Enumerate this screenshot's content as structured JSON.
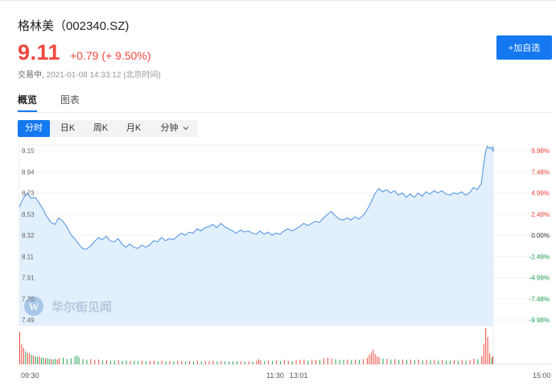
{
  "stock": {
    "name_code": "格林美（002340.SZ)",
    "price": "9.11",
    "change": "+0.79 (+ 9.50%)",
    "status": "交易中,",
    "timestamp": "2021-01-08 14:33:12 (北京时间)"
  },
  "add_watch_label": "+加自选",
  "tabs": [
    {
      "label": "概览"
    },
    {
      "label": "图表"
    }
  ],
  "periods": [
    {
      "label": "分时"
    },
    {
      "label": "日K"
    },
    {
      "label": "周K"
    },
    {
      "label": "月K"
    },
    {
      "label": "分钟"
    }
  ],
  "periods_dropdown_icon": "chevron-down-icon",
  "watermark": "华尔街见闻",
  "colors": {
    "up": "#f0463c",
    "down": "#23a356",
    "neutral": "#333333",
    "accent": "#1478f0",
    "line": "#4a90e2",
    "fill": "#e2effc"
  },
  "chart_data": {
    "type": "area",
    "prev_close": 8.32,
    "ylim": [
      7.49,
      9.15
    ],
    "y_ticks_price": [
      "9.15",
      "8.94",
      "8.73",
      "8.53",
      "8.32",
      "8.11",
      "7.91",
      "7.70",
      "7.49"
    ],
    "y_ticks_pct": [
      "9.98%",
      "7.48%",
      "4.99%",
      "2.49%",
      "0.00%",
      "-2.49%",
      "-4.99%",
      "-7.48%",
      "-9.98%"
    ],
    "x_ticks": [
      "09:30",
      "11:30",
      "13:01",
      "15:00"
    ],
    "total_minutes": 240,
    "price_points": [
      [
        0,
        8.58
      ],
      [
        2,
        8.66
      ],
      [
        4,
        8.71
      ],
      [
        6,
        8.66
      ],
      [
        8,
        8.67
      ],
      [
        10,
        8.62
      ],
      [
        12,
        8.56
      ],
      [
        14,
        8.49
      ],
      [
        16,
        8.44
      ],
      [
        18,
        8.42
      ],
      [
        20,
        8.48
      ],
      [
        22,
        8.45
      ],
      [
        24,
        8.4
      ],
      [
        26,
        8.33
      ],
      [
        28,
        8.29
      ],
      [
        30,
        8.24
      ],
      [
        32,
        8.2
      ],
      [
        34,
        8.19
      ],
      [
        36,
        8.22
      ],
      [
        38,
        8.26
      ],
      [
        40,
        8.3
      ],
      [
        42,
        8.28
      ],
      [
        44,
        8.31
      ],
      [
        46,
        8.27
      ],
      [
        48,
        8.26
      ],
      [
        50,
        8.29
      ],
      [
        52,
        8.24
      ],
      [
        54,
        8.21
      ],
      [
        56,
        8.24
      ],
      [
        58,
        8.21
      ],
      [
        60,
        8.2
      ],
      [
        62,
        8.23
      ],
      [
        64,
        8.21
      ],
      [
        66,
        8.23
      ],
      [
        68,
        8.27
      ],
      [
        70,
        8.26
      ],
      [
        72,
        8.3
      ],
      [
        74,
        8.27
      ],
      [
        76,
        8.29
      ],
      [
        78,
        8.28
      ],
      [
        80,
        8.31
      ],
      [
        82,
        8.34
      ],
      [
        84,
        8.32
      ],
      [
        86,
        8.35
      ],
      [
        88,
        8.34
      ],
      [
        90,
        8.38
      ],
      [
        92,
        8.36
      ],
      [
        94,
        8.39
      ],
      [
        96,
        8.4
      ],
      [
        98,
        8.42
      ],
      [
        100,
        8.39
      ],
      [
        102,
        8.43
      ],
      [
        104,
        8.4
      ],
      [
        106,
        8.38
      ],
      [
        108,
        8.36
      ],
      [
        110,
        8.34
      ],
      [
        112,
        8.37
      ],
      [
        114,
        8.35
      ],
      [
        116,
        8.36
      ],
      [
        118,
        8.34
      ],
      [
        120,
        8.33
      ],
      [
        122,
        8.36
      ],
      [
        124,
        8.33
      ],
      [
        126,
        8.35
      ],
      [
        128,
        8.32
      ],
      [
        130,
        8.34
      ],
      [
        132,
        8.33
      ],
      [
        134,
        8.36
      ],
      [
        136,
        8.38
      ],
      [
        138,
        8.36
      ],
      [
        140,
        8.38
      ],
      [
        142,
        8.4
      ],
      [
        144,
        8.43
      ],
      [
        146,
        8.41
      ],
      [
        148,
        8.43
      ],
      [
        150,
        8.45
      ],
      [
        152,
        8.44
      ],
      [
        154,
        8.48
      ],
      [
        156,
        8.51
      ],
      [
        158,
        8.54
      ],
      [
        160,
        8.5
      ],
      [
        162,
        8.47
      ],
      [
        164,
        8.46
      ],
      [
        166,
        8.48
      ],
      [
        168,
        8.46
      ],
      [
        170,
        8.49
      ],
      [
        172,
        8.47
      ],
      [
        174,
        8.5
      ],
      [
        176,
        8.55
      ],
      [
        178,
        8.62
      ],
      [
        180,
        8.7
      ],
      [
        182,
        8.75
      ],
      [
        184,
        8.72
      ],
      [
        186,
        8.74
      ],
      [
        188,
        8.71
      ],
      [
        190,
        8.73
      ],
      [
        192,
        8.69
      ],
      [
        194,
        8.71
      ],
      [
        196,
        8.67
      ],
      [
        198,
        8.7
      ],
      [
        200,
        8.67
      ],
      [
        202,
        8.71
      ],
      [
        204,
        8.68
      ],
      [
        206,
        8.72
      ],
      [
        208,
        8.7
      ],
      [
        210,
        8.73
      ],
      [
        212,
        8.71
      ],
      [
        214,
        8.73
      ],
      [
        216,
        8.7
      ],
      [
        218,
        8.69
      ],
      [
        220,
        8.71
      ],
      [
        222,
        8.7
      ],
      [
        224,
        8.72
      ],
      [
        226,
        8.69
      ],
      [
        228,
        8.71
      ],
      [
        230,
        8.76
      ],
      [
        232,
        8.74
      ],
      [
        234,
        8.8
      ],
      [
        235,
        8.95
      ],
      [
        236,
        9.08
      ],
      [
        237,
        9.14
      ],
      [
        238,
        9.12
      ],
      [
        239,
        9.13
      ],
      [
        240,
        9.09
      ],
      [
        242,
        9.14
      ],
      [
        244,
        9.11
      ]
    ],
    "volume": [
      [
        0,
        0.9,
        "up"
      ],
      [
        1,
        0.55,
        "up"
      ],
      [
        2,
        0.45,
        "up"
      ],
      [
        3,
        0.35,
        "down"
      ],
      [
        4,
        0.32,
        "up"
      ],
      [
        5,
        0.3,
        "up"
      ],
      [
        6,
        0.26,
        "down"
      ],
      [
        7,
        0.24,
        "up"
      ],
      [
        8,
        0.22,
        "down"
      ],
      [
        9,
        0.2,
        "down"
      ],
      [
        10,
        0.22,
        "up"
      ],
      [
        11,
        0.18,
        "down"
      ],
      [
        12,
        0.18,
        "down"
      ],
      [
        13,
        0.16,
        "up"
      ],
      [
        14,
        0.17,
        "down"
      ],
      [
        15,
        0.15,
        "down"
      ],
      [
        16,
        0.14,
        "up"
      ],
      [
        17,
        0.13,
        "down"
      ],
      [
        18,
        0.15,
        "down"
      ],
      [
        19,
        0.13,
        "up"
      ],
      [
        20,
        0.16,
        "up"
      ],
      [
        22,
        0.18,
        "down"
      ],
      [
        24,
        0.14,
        "down"
      ],
      [
        26,
        0.16,
        "down"
      ],
      [
        28,
        0.22,
        "down"
      ],
      [
        29,
        0.24,
        "down"
      ],
      [
        30,
        0.2,
        "down"
      ],
      [
        32,
        0.14,
        "down"
      ],
      [
        34,
        0.12,
        "down"
      ],
      [
        36,
        0.14,
        "up"
      ],
      [
        38,
        0.12,
        "up"
      ],
      [
        40,
        0.13,
        "up"
      ],
      [
        42,
        0.1,
        "down"
      ],
      [
        44,
        0.11,
        "up"
      ],
      [
        46,
        0.09,
        "down"
      ],
      [
        48,
        0.1,
        "down"
      ],
      [
        50,
        0.11,
        "up"
      ],
      [
        52,
        0.09,
        "down"
      ],
      [
        54,
        0.1,
        "down"
      ],
      [
        56,
        0.09,
        "up"
      ],
      [
        58,
        0.1,
        "down"
      ],
      [
        60,
        0.09,
        "down"
      ],
      [
        62,
        0.1,
        "up"
      ],
      [
        64,
        0.08,
        "down"
      ],
      [
        66,
        0.09,
        "up"
      ],
      [
        68,
        0.1,
        "up"
      ],
      [
        70,
        0.08,
        "down"
      ],
      [
        72,
        0.1,
        "up"
      ],
      [
        74,
        0.08,
        "down"
      ],
      [
        76,
        0.09,
        "up"
      ],
      [
        78,
        0.08,
        "down"
      ],
      [
        80,
        0.1,
        "up"
      ],
      [
        82,
        0.09,
        "up"
      ],
      [
        84,
        0.08,
        "down"
      ],
      [
        86,
        0.09,
        "up"
      ],
      [
        88,
        0.08,
        "down"
      ],
      [
        90,
        0.1,
        "up"
      ],
      [
        92,
        0.08,
        "down"
      ],
      [
        94,
        0.09,
        "up"
      ],
      [
        96,
        0.09,
        "up"
      ],
      [
        98,
        0.1,
        "up"
      ],
      [
        100,
        0.08,
        "down"
      ],
      [
        102,
        0.09,
        "up"
      ],
      [
        104,
        0.08,
        "down"
      ],
      [
        106,
        0.08,
        "down"
      ],
      [
        108,
        0.08,
        "down"
      ],
      [
        110,
        0.09,
        "down"
      ],
      [
        112,
        0.08,
        "up"
      ],
      [
        114,
        0.07,
        "down"
      ],
      [
        116,
        0.08,
        "up"
      ],
      [
        118,
        0.07,
        "down"
      ],
      [
        120,
        0.1,
        "up"
      ],
      [
        121,
        0.14,
        "up"
      ],
      [
        122,
        0.11,
        "up"
      ],
      [
        124,
        0.09,
        "down"
      ],
      [
        126,
        0.1,
        "up"
      ],
      [
        128,
        0.09,
        "down"
      ],
      [
        130,
        0.1,
        "up"
      ],
      [
        132,
        0.09,
        "down"
      ],
      [
        134,
        0.12,
        "up"
      ],
      [
        136,
        0.1,
        "up"
      ],
      [
        138,
        0.09,
        "down"
      ],
      [
        140,
        0.11,
        "up"
      ],
      [
        142,
        0.12,
        "up"
      ],
      [
        144,
        0.13,
        "up"
      ],
      [
        146,
        0.1,
        "down"
      ],
      [
        148,
        0.12,
        "up"
      ],
      [
        150,
        0.12,
        "up"
      ],
      [
        152,
        0.11,
        "down"
      ],
      [
        154,
        0.16,
        "up"
      ],
      [
        156,
        0.18,
        "up"
      ],
      [
        158,
        0.16,
        "up"
      ],
      [
        160,
        0.14,
        "down"
      ],
      [
        162,
        0.12,
        "down"
      ],
      [
        164,
        0.12,
        "down"
      ],
      [
        166,
        0.13,
        "up"
      ],
      [
        168,
        0.12,
        "down"
      ],
      [
        170,
        0.13,
        "up"
      ],
      [
        172,
        0.12,
        "down"
      ],
      [
        174,
        0.14,
        "up"
      ],
      [
        176,
        0.18,
        "up"
      ],
      [
        177,
        0.26,
        "up"
      ],
      [
        178,
        0.32,
        "up"
      ],
      [
        179,
        0.4,
        "up"
      ],
      [
        180,
        0.28,
        "up"
      ],
      [
        181,
        0.22,
        "up"
      ],
      [
        182,
        0.2,
        "up"
      ],
      [
        184,
        0.16,
        "down"
      ],
      [
        186,
        0.15,
        "up"
      ],
      [
        188,
        0.13,
        "down"
      ],
      [
        190,
        0.14,
        "up"
      ],
      [
        192,
        0.12,
        "down"
      ],
      [
        194,
        0.13,
        "up"
      ],
      [
        196,
        0.12,
        "down"
      ],
      [
        198,
        0.13,
        "up"
      ],
      [
        200,
        0.11,
        "down"
      ],
      [
        202,
        0.13,
        "up"
      ],
      [
        204,
        0.11,
        "down"
      ],
      [
        206,
        0.12,
        "up"
      ],
      [
        208,
        0.11,
        "down"
      ],
      [
        210,
        0.12,
        "up"
      ],
      [
        212,
        0.1,
        "down"
      ],
      [
        214,
        0.11,
        "up"
      ],
      [
        216,
        0.1,
        "down"
      ],
      [
        218,
        0.1,
        "down"
      ],
      [
        220,
        0.11,
        "up"
      ],
      [
        222,
        0.1,
        "down"
      ],
      [
        224,
        0.12,
        "up"
      ],
      [
        226,
        0.1,
        "down"
      ],
      [
        228,
        0.12,
        "up"
      ],
      [
        230,
        0.16,
        "up"
      ],
      [
        232,
        0.14,
        "down"
      ],
      [
        234,
        0.22,
        "up"
      ],
      [
        235,
        0.55,
        "up"
      ],
      [
        236,
        1.0,
        "up"
      ],
      [
        237,
        0.75,
        "up"
      ],
      [
        238,
        0.3,
        "up"
      ],
      [
        239,
        0.18,
        "down"
      ],
      [
        240,
        0.22,
        "up"
      ],
      [
        241,
        0.14,
        "down"
      ],
      [
        242,
        0.2,
        "up"
      ],
      [
        243,
        0.12,
        "down"
      ],
      [
        244,
        0.15,
        "up"
      ]
    ]
  }
}
